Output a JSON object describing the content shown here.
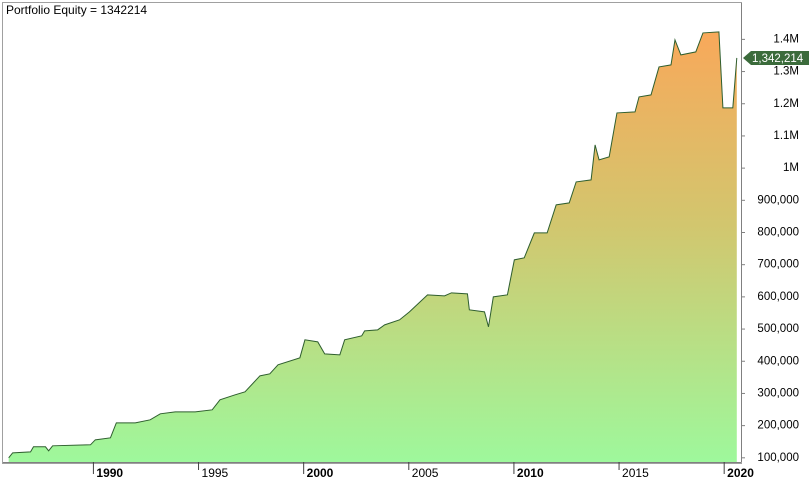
{
  "chart_data": {
    "type": "area",
    "title": "Portfolio Equity = 1342214",
    "x": [
      1985.97,
      1986.16,
      1987.01,
      1987.15,
      1987.72,
      1987.87,
      1988.06,
      1989.86,
      1990.09,
      1990.81,
      1991.09,
      1991.99,
      1992.7,
      1993.18,
      1993.89,
      1994.84,
      1995.65,
      1996.02,
      1996.74,
      1997.21,
      1997.92,
      1998.39,
      1998.78,
      1999.82,
      2000.06,
      2000.67,
      2001.0,
      2001.72,
      2001.95,
      2002.76,
      2002.9,
      2003.52,
      2003.85,
      2004.56,
      2005.03,
      2005.89,
      2006.7,
      2007.03,
      2007.79,
      2007.88,
      2008.6,
      2008.79,
      2009.02,
      2009.69,
      2010.02,
      2010.49,
      2010.97,
      2011.58,
      2012.01,
      2012.63,
      2012.96,
      2013.67,
      2013.86,
      2014.05,
      2014.53,
      2014.9,
      2015.76,
      2015.95,
      2016.52,
      2016.9,
      2017.47,
      2017.66,
      2017.94,
      2018.65,
      2018.99,
      2019.75,
      2019.94,
      2020.41,
      2020.6
    ],
    "values": [
      100000,
      115500,
      118600,
      134200,
      134200,
      121700,
      137300,
      140400,
      155900,
      162100,
      208700,
      208700,
      218000,
      236700,
      242900,
      242900,
      249100,
      280200,
      295700,
      305000,
      354700,
      360900,
      388900,
      410700,
      466600,
      460300,
      423000,
      419900,
      466600,
      478900,
      494500,
      497600,
      513100,
      528600,
      553500,
      606300,
      603200,
      612500,
      609400,
      559700,
      553500,
      506900,
      600000,
      606300,
      715000,
      721200,
      798800,
      798800,
      885800,
      892000,
      957200,
      963500,
      1072200,
      1025600,
      1034900,
      1171500,
      1174700,
      1221200,
      1227500,
      1314400,
      1320600,
      1398300,
      1351700,
      1361000,
      1420000,
      1423100,
      1187000,
      1187000,
      1342214
    ],
    "last_value_label": "1,342,214",
    "line_color": "#2e5e2e",
    "gradient": [
      "#9ef89c",
      "#d2c66e",
      "#f9a85a"
    ],
    "badge_color": "#3b6b3b",
    "xlim": [
      1985.7,
      2020.8
    ],
    "xticks": [
      1990,
      1995,
      2000,
      2005,
      2010,
      2015,
      2020
    ],
    "ylim": [
      87000,
      1513000
    ],
    "yticks": [
      {
        "value": 100000,
        "label": "100,000"
      },
      {
        "value": 200000,
        "label": "200,000"
      },
      {
        "value": 300000,
        "label": "300,000"
      },
      {
        "value": 400000,
        "label": "400,000"
      },
      {
        "value": 500000,
        "label": "500,000"
      },
      {
        "value": 600000,
        "label": "600,000"
      },
      {
        "value": 700000,
        "label": "700,000"
      },
      {
        "value": 800000,
        "label": "800,000"
      },
      {
        "value": 900000,
        "label": "900,000"
      },
      {
        "value": 1000000,
        "label": "1M"
      },
      {
        "value": 1100000,
        "label": "1.1M"
      },
      {
        "value": 1200000,
        "label": "1.2M"
      },
      {
        "value": 1300000,
        "label": "1.3M"
      },
      {
        "value": 1400000,
        "label": "1.4M"
      }
    ]
  }
}
